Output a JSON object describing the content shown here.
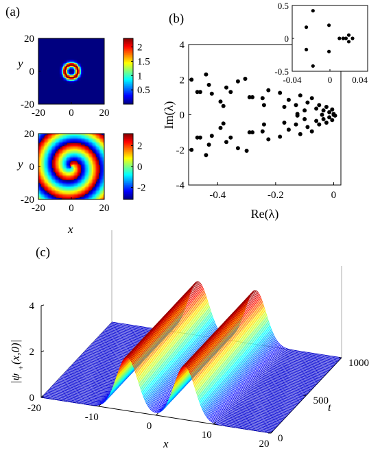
{
  "figure": {
    "panel_labels": [
      "(a)",
      "(b)",
      "(c)"
    ]
  },
  "chart_data": [
    {
      "panel": "(a)",
      "type": "heatmap",
      "title": "",
      "xlabel": "",
      "ylabel": "y",
      "xlim": [
        -20,
        20
      ],
      "ylim": [
        -20,
        20
      ],
      "x_ticks": [
        "-20",
        "0",
        "20"
      ],
      "y_ticks": [
        "20",
        "0",
        "-20"
      ],
      "pattern": "ring",
      "ring_radius": 4,
      "ring_width": 1.6,
      "colorbar": {
        "range": [
          0,
          2.3
        ],
        "ticks": [
          "2",
          "1.5",
          "1",
          "0.5"
        ],
        "tick_values": [
          2,
          1.5,
          1,
          0.5
        ]
      },
      "colormap": "jet"
    },
    {
      "panel": "(a) lower",
      "type": "heatmap",
      "title": "",
      "xlabel": "x",
      "ylabel": "y",
      "xlim": [
        -20,
        20
      ],
      "ylim": [
        -20,
        20
      ],
      "x_ticks": [
        "-20",
        "0",
        "20"
      ],
      "y_ticks": [
        "20",
        "0",
        "-20"
      ],
      "pattern": "spiral-phase",
      "colorbar": {
        "range": [
          -3.14,
          3.14
        ],
        "ticks": [
          "2",
          "0",
          "-2"
        ],
        "tick_values": [
          2,
          0,
          -2
        ]
      },
      "colormap": "jet"
    },
    {
      "panel": "(b)",
      "type": "scatter",
      "title": "",
      "xlabel": "Re(λ)",
      "ylabel": "Im(λ)",
      "xlim": [
        -0.5,
        0.025
      ],
      "ylim": [
        -4,
        4
      ],
      "x_ticks": [
        "-0.4",
        "-0.2",
        "0"
      ],
      "x_tick_values": [
        -0.4,
        -0.2,
        0
      ],
      "y_ticks": [
        "4",
        "2",
        "0",
        "-2",
        "-4"
      ],
      "y_tick_values": [
        4,
        2,
        0,
        -2,
        -4
      ],
      "points": [
        [
          -0.49,
          2.0
        ],
        [
          -0.49,
          -2.0
        ],
        [
          -0.47,
          1.3
        ],
        [
          -0.46,
          1.3
        ],
        [
          -0.47,
          -1.3
        ],
        [
          -0.46,
          -1.3
        ],
        [
          -0.44,
          2.3
        ],
        [
          -0.44,
          -2.3
        ],
        [
          -0.43,
          1.7
        ],
        [
          -0.42,
          1.2
        ],
        [
          -0.43,
          -1.7
        ],
        [
          -0.42,
          -1.2
        ],
        [
          -0.39,
          0.75
        ],
        [
          -0.38,
          0.5
        ],
        [
          -0.39,
          -0.75
        ],
        [
          -0.38,
          -0.5
        ],
        [
          -0.37,
          1.55
        ],
        [
          -0.37,
          -1.55
        ],
        [
          -0.355,
          1.3
        ],
        [
          -0.355,
          -1.3
        ],
        [
          -0.33,
          1.9
        ],
        [
          -0.33,
          -1.9
        ],
        [
          -0.305,
          2.05
        ],
        [
          -0.3,
          -2.05
        ],
        [
          -0.29,
          1.0
        ],
        [
          -0.28,
          1.0
        ],
        [
          -0.29,
          -1.0
        ],
        [
          -0.28,
          -1.0
        ],
        [
          -0.245,
          0.95
        ],
        [
          -0.24,
          0.55
        ],
        [
          -0.245,
          -0.95
        ],
        [
          -0.24,
          -0.55
        ],
        [
          -0.225,
          1.4
        ],
        [
          -0.225,
          -1.4
        ],
        [
          -0.185,
          1.25
        ],
        [
          -0.185,
          -1.25
        ],
        [
          -0.17,
          0.45
        ],
        [
          -0.17,
          -0.45
        ],
        [
          -0.155,
          0.85
        ],
        [
          -0.155,
          -0.85
        ],
        [
          -0.13,
          0.55
        ],
        [
          -0.125,
          0.05
        ],
        [
          -0.13,
          -0.55
        ],
        [
          -0.125,
          -0.05
        ],
        [
          -0.115,
          1.1
        ],
        [
          -0.115,
          -1.1
        ],
        [
          -0.1,
          0.25
        ],
        [
          -0.1,
          -0.25
        ],
        [
          -0.09,
          0.7
        ],
        [
          -0.09,
          -0.7
        ],
        [
          -0.075,
          0.95
        ],
        [
          -0.075,
          -0.95
        ],
        [
          -0.06,
          0.35
        ],
        [
          -0.06,
          -0.35
        ],
        [
          -0.05,
          0.55
        ],
        [
          -0.05,
          -0.55
        ],
        [
          -0.04,
          0.0
        ],
        [
          -0.035,
          0.25
        ],
        [
          -0.035,
          -0.25
        ],
        [
          -0.025,
          0.45
        ],
        [
          -0.025,
          -0.45
        ],
        [
          -0.015,
          0.15
        ],
        [
          -0.015,
          -0.15
        ],
        [
          -0.005,
          0.3
        ],
        [
          -0.005,
          -0.3
        ],
        [
          0.0,
          0.05
        ],
        [
          0.005,
          -0.05
        ],
        [
          0.0,
          0.0
        ]
      ],
      "inset": {
        "xlim": [
          -0.04,
          0.04
        ],
        "ylim": [
          -0.5,
          0.5
        ],
        "x_ticks": [
          "-0.04",
          "0",
          "0.04"
        ],
        "x_tick_values": [
          -0.04,
          0,
          0.04
        ],
        "y_ticks": [
          "0.5",
          "0",
          "-0.5"
        ],
        "y_tick_values": [
          0.5,
          0,
          -0.5
        ],
        "points": [
          [
            -0.018,
            0.42
          ],
          [
            -0.018,
            -0.42
          ],
          [
            -0.025,
            0.17
          ],
          [
            -0.025,
            -0.17
          ],
          [
            -0.001,
            0.2
          ],
          [
            -0.001,
            -0.2
          ],
          [
            0.01,
            0.0
          ],
          [
            0.014,
            0.0
          ],
          [
            0.017,
            0.0
          ],
          [
            0.02,
            0.05
          ],
          [
            0.02,
            -0.05
          ],
          [
            0.024,
            0.0
          ]
        ]
      }
    },
    {
      "panel": "(c)",
      "type": "area",
      "title": "",
      "xlabel": "x",
      "ylabel": "|ψ+(x,0)|",
      "tlabel": "t",
      "xlim": [
        -20,
        20
      ],
      "tlim": [
        0,
        1000
      ],
      "zlim": [
        0,
        4
      ],
      "x_ticks": [
        "-20",
        "-10",
        "0",
        "10",
        "20"
      ],
      "x_tick_values": [
        -20,
        -10,
        0,
        10,
        20
      ],
      "t_ticks": [
        "0",
        "500",
        "1000"
      ],
      "t_tick_values": [
        0,
        500,
        1000
      ],
      "z_ticks": [
        "0",
        "2",
        "4"
      ],
      "z_tick_values": [
        0,
        2,
        4
      ],
      "profile": {
        "peak_positions": [
          -5,
          5
        ],
        "peak_height": 2.35,
        "width": 2.6
      },
      "n_slices": 95
    }
  ]
}
